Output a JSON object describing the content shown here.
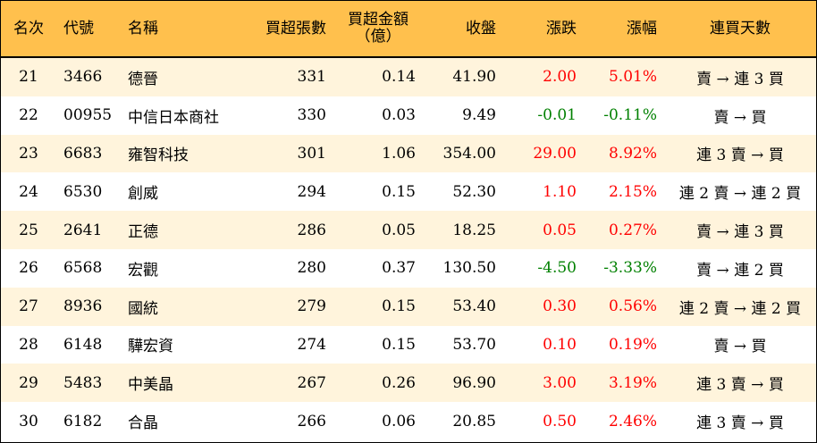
{
  "headers": {
    "rank": "名次",
    "code": "代號",
    "name": "名稱",
    "lots": "買超張數",
    "amount_line1": "買超金額",
    "amount_line2": "（億）",
    "close": "收盤",
    "change": "漲跌",
    "pct": "漲幅",
    "days": "連買天數"
  },
  "colors": {
    "header_bg": "#ffc04d",
    "row_odd_bg": "#fff4dc",
    "up": "#ff0000",
    "down": "#008000"
  },
  "rows": [
    {
      "rank": "21",
      "code": "3466",
      "name": "德晉",
      "lots": "331",
      "amount": "0.14",
      "close": "41.90",
      "change": "2.00",
      "pct": "5.01%",
      "days": "賣 → 連 3 買",
      "dir": "up"
    },
    {
      "rank": "22",
      "code": "00955",
      "name": "中信日本商社",
      "lots": "330",
      "amount": "0.03",
      "close": "9.49",
      "change": "-0.01",
      "pct": "-0.11%",
      "days": "賣 → 買",
      "dir": "down"
    },
    {
      "rank": "23",
      "code": "6683",
      "name": "雍智科技",
      "lots": "301",
      "amount": "1.06",
      "close": "354.00",
      "change": "29.00",
      "pct": "8.92%",
      "days": "連 3 賣 → 買",
      "dir": "up"
    },
    {
      "rank": "24",
      "code": "6530",
      "name": "創威",
      "lots": "294",
      "amount": "0.15",
      "close": "52.30",
      "change": "1.10",
      "pct": "2.15%",
      "days": "連 2 賣 → 連 2 買",
      "dir": "up"
    },
    {
      "rank": "25",
      "code": "2641",
      "name": "正德",
      "lots": "286",
      "amount": "0.05",
      "close": "18.25",
      "change": "0.05",
      "pct": "0.27%",
      "days": "賣 → 連 3 買",
      "dir": "up"
    },
    {
      "rank": "26",
      "code": "6568",
      "name": "宏觀",
      "lots": "280",
      "amount": "0.37",
      "close": "130.50",
      "change": "-4.50",
      "pct": "-3.33%",
      "days": "賣 → 連 2 買",
      "dir": "down"
    },
    {
      "rank": "27",
      "code": "8936",
      "name": "國統",
      "lots": "279",
      "amount": "0.15",
      "close": "53.40",
      "change": "0.30",
      "pct": "0.56%",
      "days": "連 2 賣 → 連 2 買",
      "dir": "up"
    },
    {
      "rank": "28",
      "code": "6148",
      "name": "驊宏資",
      "lots": "274",
      "amount": "0.15",
      "close": "53.70",
      "change": "0.10",
      "pct": "0.19%",
      "days": "賣 → 買",
      "dir": "up"
    },
    {
      "rank": "29",
      "code": "5483",
      "name": "中美晶",
      "lots": "267",
      "amount": "0.26",
      "close": "96.90",
      "change": "3.00",
      "pct": "3.19%",
      "days": "連 3 賣 → 買",
      "dir": "up"
    },
    {
      "rank": "30",
      "code": "6182",
      "name": "合晶",
      "lots": "266",
      "amount": "0.06",
      "close": "20.85",
      "change": "0.50",
      "pct": "2.46%",
      "days": "連 3 賣 → 買",
      "dir": "up"
    }
  ]
}
